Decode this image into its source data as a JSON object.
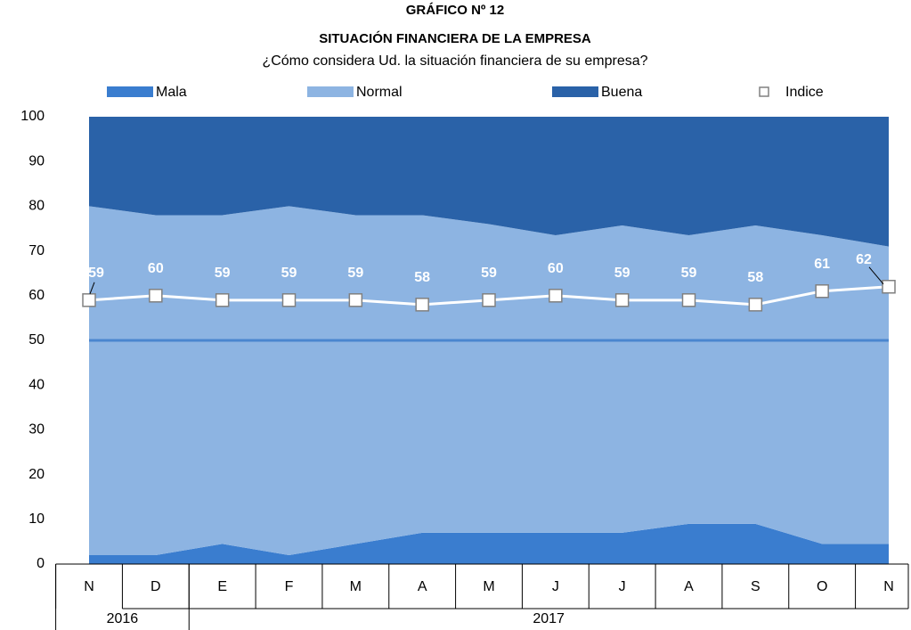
{
  "chart_data": {
    "type": "stacked_area",
    "title": "GRÁFICO Nº 12",
    "subtitle": "SITUACIÓN FINANCIERA DE LA EMPRESA",
    "question": "¿Cómo considera Ud. la situación financiera de su empresa?",
    "categories": [
      "N",
      "D",
      "E",
      "F",
      "M",
      "A",
      "M",
      "J",
      "J",
      "A",
      "S",
      "O",
      "N"
    ],
    "x_groups": [
      {
        "label": "2016",
        "count": 2
      },
      {
        "label": "2017",
        "count": 11
      }
    ],
    "series": [
      {
        "name": "Mala",
        "color": "#3a7dcf",
        "values": [
          2,
          2,
          4.5,
          2,
          4.5,
          7,
          7,
          7,
          7,
          9,
          9,
          4.5,
          4.5
        ]
      },
      {
        "name": "Normal",
        "color": "#8db4e2",
        "values": [
          78,
          76,
          73.5,
          78,
          73.5,
          71,
          69,
          66.5,
          68.7,
          64.5,
          66.7,
          69,
          66.5
        ]
      },
      {
        "name": "Buena",
        "color": "#2a62a8",
        "values": [
          20,
          22,
          22,
          20,
          22,
          22,
          24,
          26.5,
          24.3,
          26.5,
          24.3,
          26.5,
          29
        ]
      },
      {
        "name": "Indice",
        "color": "#ffffff",
        "kind": "line",
        "values": [
          59,
          60,
          59,
          59,
          59,
          58,
          59,
          60,
          59,
          59,
          58,
          61,
          62
        ]
      }
    ],
    "reference_line": {
      "value": 50,
      "color": "#4a86cf"
    },
    "ylim": [
      0,
      100
    ],
    "yticks": [
      0,
      10,
      20,
      30,
      40,
      50,
      60,
      70,
      80,
      90,
      100
    ],
    "legend": "top"
  }
}
